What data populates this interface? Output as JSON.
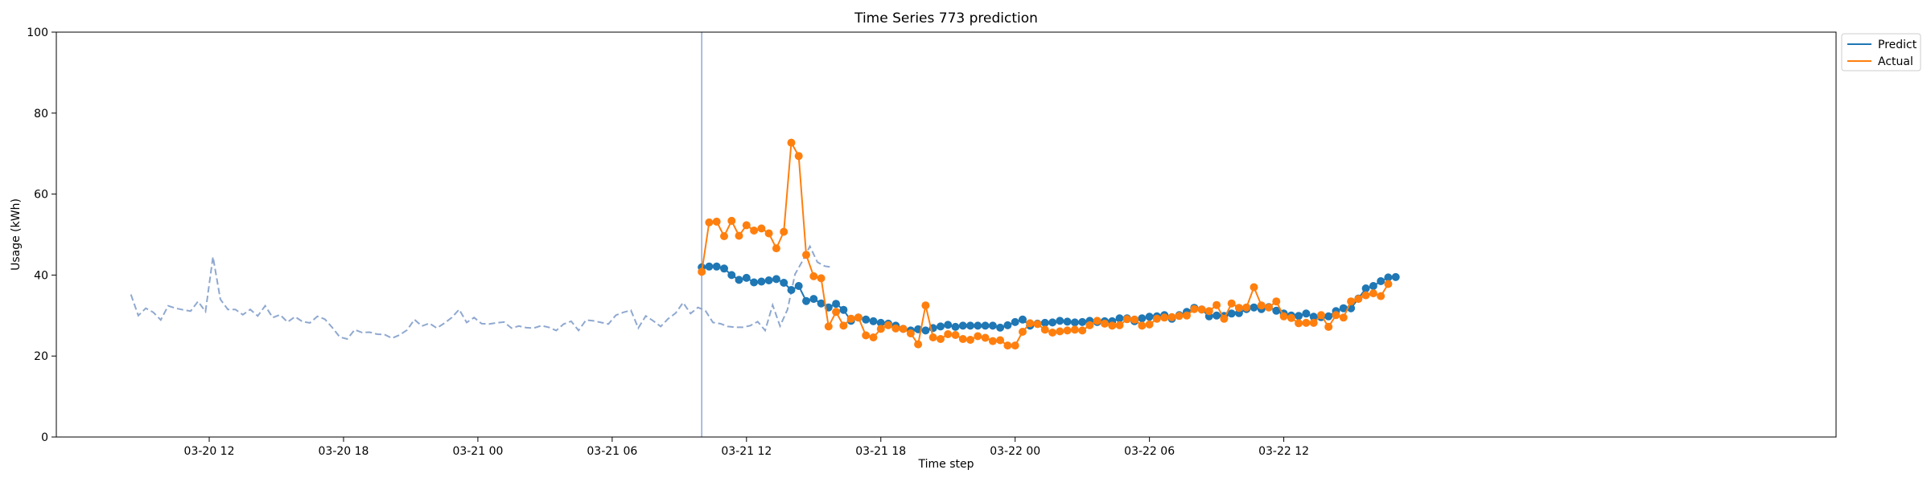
{
  "chart_data": {
    "type": "line",
    "title": "Time Series 773 prediction",
    "xlabel": "Time step",
    "ylabel": "Usage (kWh)",
    "ylim": [
      0,
      100
    ],
    "yticks": [
      0,
      20,
      40,
      60,
      80,
      100
    ],
    "xlim_hours_note": "x axis spans 03-20 ~05:10 to 03-22 ~12:40",
    "xticks": [
      "03-20 12",
      "03-20 18",
      "03-21 00",
      "03-21 06",
      "03-21 12",
      "03-21 18",
      "03-22 00",
      "03-22 06",
      "03-22 12"
    ],
    "vline_label_time": "03-21 10:00",
    "legend": {
      "location": "top-right-outside",
      "entries": [
        "Predict",
        "Actual"
      ]
    },
    "grid": false,
    "colors": {
      "predict": "#1f77b4",
      "actual": "#ff7f0e",
      "history": "#8fa8d0",
      "vline": "#8fa8d0"
    },
    "history": {
      "start": "03-20 08:30",
      "step_minutes": 20,
      "values": [
        35.2,
        30.0,
        31.8,
        30.8,
        28.9,
        32.4,
        31.8,
        31.4,
        31.1,
        33.5,
        31.0,
        44.5,
        34.0,
        31.5,
        31.5,
        30.2,
        31.5,
        29.9,
        32.4,
        29.5,
        30.2,
        28.4,
        29.7,
        28.5,
        28.2,
        29.8,
        29.1,
        27.0,
        24.7,
        24.2,
        26.5,
        25.8,
        25.9,
        25.4,
        25.3,
        24.4,
        25.2,
        26.4,
        29.0,
        27.4,
        28.1,
        26.9,
        28.1,
        29.5,
        31.5,
        28.3,
        29.5,
        28.0,
        27.9,
        28.2,
        28.4,
        26.9,
        27.4,
        27.0,
        26.9,
        27.5,
        27.1,
        26.3,
        27.9,
        28.6,
        26.3,
        28.9,
        28.7,
        28.3,
        27.9,
        30.1,
        30.8,
        31.3,
        26.9,
        29.9,
        28.7,
        27.3,
        29.2,
        30.6,
        33.2,
        30.5,
        32.0,
        31.2,
        28.3,
        28.0,
        27.3,
        27.1,
        27.1,
        27.5,
        28.5,
        26.3,
        32.6,
        27.4,
        31.5,
        40.2,
        43.5,
        47.1,
        43.2,
        42.2,
        41.9
      ]
    },
    "series": [
      {
        "name": "Predict",
        "start": "03-21 10:00",
        "step_minutes": 20,
        "values": [
          41.9,
          42.1,
          42.1,
          41.6,
          40.0,
          38.8,
          39.3,
          38.2,
          38.4,
          38.7,
          39.0,
          38.1,
          36.3,
          37.3,
          33.6,
          34.1,
          33.0,
          32.0,
          32.9,
          31.4,
          28.7,
          29.5,
          29.0,
          28.6,
          28.2,
          28.0,
          27.5,
          26.7,
          26.3,
          26.6,
          26.3,
          26.9,
          27.3,
          27.7,
          27.2,
          27.5,
          27.5,
          27.5,
          27.5,
          27.5,
          27.0,
          27.6,
          28.4,
          29.0,
          27.5,
          28.0,
          28.2,
          28.3,
          28.7,
          28.5,
          28.3,
          28.4,
          28.7,
          28.4,
          28.6,
          28.6,
          29.3,
          29.3,
          28.6,
          29.3,
          29.7,
          29.8,
          30.1,
          29.2,
          30.1,
          30.9,
          31.9,
          31.5,
          29.8,
          30.0,
          29.9,
          30.5,
          30.6,
          31.6,
          32.0,
          31.6,
          32.1,
          31.2,
          30.5,
          30.0,
          29.9,
          30.5,
          29.7,
          29.6,
          29.8,
          31.1,
          31.8,
          31.8,
          34.2,
          36.7,
          37.3,
          38.5,
          39.4,
          39.5
        ]
      },
      {
        "name": "Actual",
        "start": "03-21 10:00",
        "step_minutes": 20,
        "values": [
          40.8,
          53.0,
          53.2,
          49.6,
          53.4,
          49.7,
          52.3,
          51.0,
          51.5,
          50.3,
          46.6,
          50.7,
          72.7,
          69.4,
          45.0,
          39.7,
          39.2,
          27.3,
          30.9,
          27.5,
          29.2,
          29.5,
          25.1,
          24.6,
          26.7,
          27.6,
          26.8,
          26.7,
          25.6,
          22.9,
          32.5,
          24.6,
          24.2,
          25.4,
          25.2,
          24.2,
          24.0,
          24.9,
          24.5,
          23.7,
          23.9,
          22.6,
          22.6,
          26.0,
          28.1,
          27.9,
          26.5,
          25.8,
          26.1,
          26.3,
          26.5,
          26.3,
          27.6,
          28.7,
          28.0,
          27.5,
          27.6,
          29.1,
          29.0,
          27.5,
          27.8,
          29.2,
          29.5,
          29.6,
          29.9,
          30.0,
          31.6,
          31.5,
          31.1,
          32.6,
          29.2,
          33.0,
          31.9,
          32.0,
          37.0,
          32.5,
          32.0,
          33.5,
          29.8,
          29.4,
          28.1,
          28.2,
          28.2,
          30.1,
          27.2,
          30.1,
          29.5,
          33.5,
          34.1,
          35.0,
          35.5,
          34.8,
          37.8
        ]
      }
    ]
  }
}
